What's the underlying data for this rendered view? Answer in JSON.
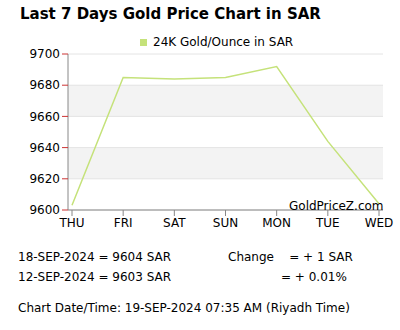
{
  "chart_data": {
    "type": "line",
    "title": "Last 7 Days Gold Price Chart in SAR",
    "categories": [
      "THU",
      "FRI",
      "SAT",
      "SUN",
      "MON",
      "TUE",
      "WED"
    ],
    "series": [
      {
        "name": "24K Gold/Ounce in SAR",
        "color": "#c5e27a",
        "values": [
          9603,
          9685,
          9684,
          9685,
          9692,
          9644,
          9604
        ]
      }
    ],
    "ylim": [
      9600,
      9700
    ],
    "yticks": [
      9600,
      9620,
      9640,
      9660,
      9680,
      9700
    ],
    "grid": true,
    "legend": "top",
    "annotations": [
      "GoldPriceZ.com",
      "18-SEP-2024 = 9604 SAR",
      "12-SEP-2024 = 9603 SAR",
      "Change    = + 1 SAR",
      "= + 0.01%",
      "Chart Date/Time: 19-SEP-2024 07:35 AM (Riyadh Time)"
    ]
  }
}
